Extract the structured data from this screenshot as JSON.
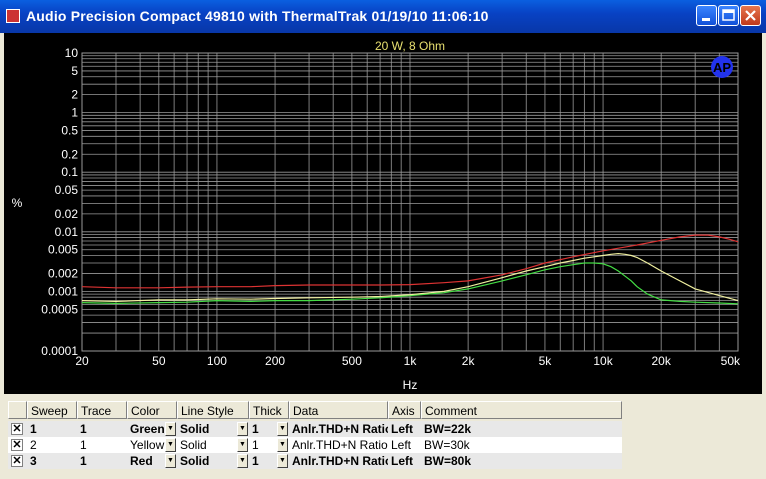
{
  "window": {
    "title": "Audio Precision  Compact 49810 with ThermalTrak  01/19/10 11:06:10"
  },
  "colors": {
    "plot_bg": "#000000",
    "grid": "#9a9a9a",
    "text": "#ffffff",
    "title_text": "#e8e070",
    "logo": "#2233ee"
  },
  "chart_data": {
    "type": "line",
    "title": "20 W, 8 Ohm",
    "xlabel": "Hz",
    "ylabel": "%",
    "xscale": "log",
    "yscale": "log",
    "xlim": [
      20,
      50000
    ],
    "ylim": [
      0.0001,
      10
    ],
    "grid": true,
    "x_ticks": [
      "20",
      "50",
      "100",
      "200",
      "500",
      "1k",
      "2k",
      "5k",
      "10k",
      "20k",
      "50k"
    ],
    "y_ticks": [
      "10",
      "5",
      "2",
      "1",
      "0.5",
      "0.2",
      "0.1",
      "0.05",
      "0.02",
      "0.01",
      "0.005",
      "0.002",
      "0.001",
      "0.0005",
      "0.0001"
    ],
    "series": [
      {
        "color": "#44dd44",
        "x": [
          20,
          30,
          50,
          70,
          100,
          150,
          200,
          300,
          500,
          700,
          1000,
          1500,
          2000,
          3000,
          4000,
          5000,
          6000,
          7000,
          8000,
          9000,
          10000,
          11000,
          12000,
          13000,
          14000,
          15000,
          17000,
          20000,
          25000,
          30000,
          40000,
          50000
        ],
        "y": [
          0.00065,
          0.00063,
          0.00065,
          0.00066,
          0.0007,
          0.00068,
          0.0007,
          0.0007,
          0.00074,
          0.00078,
          0.00085,
          0.00095,
          0.0011,
          0.0015,
          0.0019,
          0.0023,
          0.0026,
          0.0028,
          0.003,
          0.003,
          0.0029,
          0.0026,
          0.0022,
          0.0018,
          0.0015,
          0.0012,
          0.0009,
          0.00072,
          0.00068,
          0.00066,
          0.00064,
          0.00062
        ]
      },
      {
        "color": "#f0f0a0",
        "x": [
          20,
          30,
          50,
          70,
          100,
          150,
          200,
          300,
          500,
          700,
          1000,
          1500,
          2000,
          3000,
          4000,
          5000,
          6000,
          7000,
          8000,
          9000,
          10000,
          11000,
          12000,
          13000,
          14000,
          15000,
          17000,
          20000,
          25000,
          30000,
          40000,
          50000
        ],
        "y": [
          0.0007,
          0.00068,
          0.00072,
          0.00072,
          0.00075,
          0.00074,
          0.00076,
          0.00078,
          0.0008,
          0.00082,
          0.00088,
          0.001,
          0.0012,
          0.0017,
          0.0022,
          0.0026,
          0.003,
          0.0033,
          0.0036,
          0.0038,
          0.004,
          0.0042,
          0.0043,
          0.0042,
          0.004,
          0.0037,
          0.003,
          0.0022,
          0.0015,
          0.0011,
          0.00085,
          0.0007
        ]
      },
      {
        "color": "#dd3333",
        "x": [
          20,
          30,
          50,
          70,
          100,
          150,
          200,
          300,
          500,
          700,
          1000,
          1500,
          2000,
          3000,
          4000,
          5000,
          7000,
          10000,
          15000,
          20000,
          25000,
          30000,
          35000,
          40000,
          45000,
          50000
        ],
        "y": [
          0.0012,
          0.00115,
          0.00115,
          0.00118,
          0.0012,
          0.0012,
          0.00125,
          0.00128,
          0.00128,
          0.00128,
          0.0013,
          0.0014,
          0.0015,
          0.0019,
          0.0024,
          0.003,
          0.0038,
          0.0048,
          0.006,
          0.0072,
          0.0082,
          0.0088,
          0.0088,
          0.0082,
          0.0075,
          0.0068
        ]
      }
    ]
  },
  "table": {
    "headers": [
      "Sweep",
      "Trace",
      "Color",
      "Line Style",
      "Thick",
      "Data",
      "Axis",
      "Comment"
    ],
    "rows": [
      {
        "checked": "✕",
        "sweep": "1",
        "trace": "1",
        "color": "Green",
        "style": "Solid",
        "thick": "1",
        "data": "Anlr.THD+N Ratio",
        "axis": "Left",
        "comment": "BW=22k",
        "bold": true,
        "bg": "#e8e8e8"
      },
      {
        "checked": "✕",
        "sweep": "2",
        "trace": "1",
        "color": "Yellow",
        "style": "Solid",
        "thick": "1",
        "data": "Anlr.THD+N Ratio",
        "axis": "Left",
        "comment": "BW=30k",
        "bold": false,
        "bg": "#ffffff"
      },
      {
        "checked": "✕",
        "sweep": "3",
        "trace": "1",
        "color": "Red",
        "style": "Solid",
        "thick": "1",
        "data": "Anlr.THD+N Ratio",
        "axis": "Left",
        "comment": "BW=80k",
        "bold": true,
        "bg": "#e8e8e8"
      }
    ]
  }
}
